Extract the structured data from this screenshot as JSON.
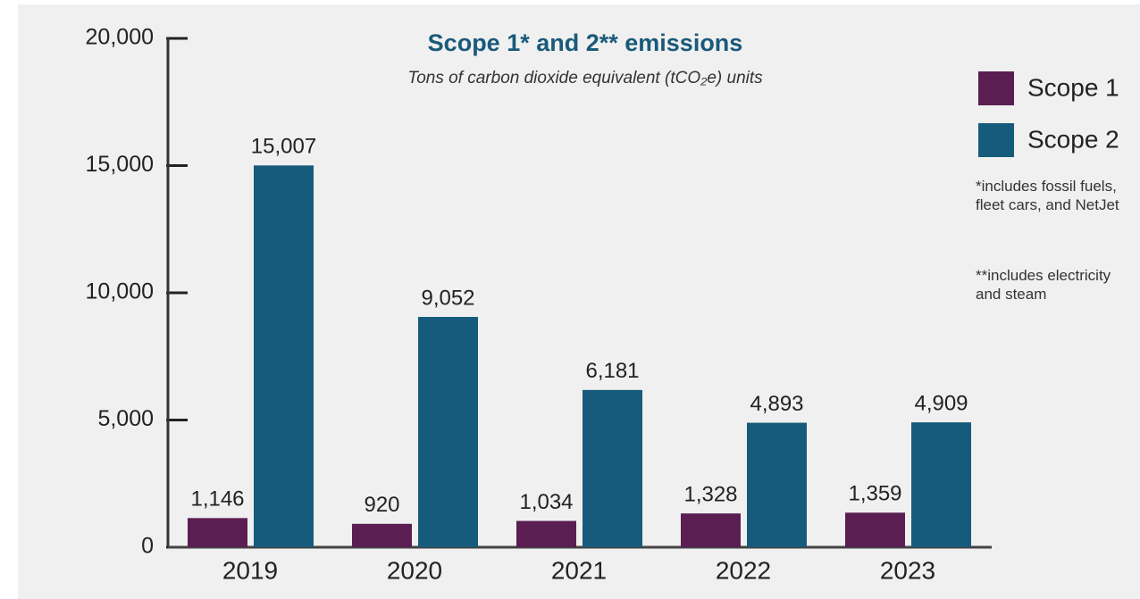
{
  "chart_data": {
    "type": "bar",
    "title": "Scope 1* and 2** emissions",
    "subtitle": "Tons of carbon dioxide equivalent (tCO₂e) units",
    "categories": [
      "2019",
      "2020",
      "2021",
      "2022",
      "2023"
    ],
    "series": [
      {
        "name": "Scope 1",
        "color": "#5a1e52",
        "values": [
          1146,
          920,
          1034,
          1328,
          1359
        ],
        "value_labels": [
          "1,146",
          "920",
          "1,034",
          "1,328",
          "1,359"
        ]
      },
      {
        "name": "Scope 2",
        "color": "#165b7b",
        "values": [
          15007,
          9052,
          6181,
          4893,
          4909
        ],
        "value_labels": [
          "15,007",
          "9,052",
          "6,181",
          "4,893",
          "4,909"
        ]
      }
    ],
    "ylim": [
      0,
      20000
    ],
    "yticks": [
      0,
      {
        "value": 5000,
        "label": "5,000"
      },
      {
        "value": 10000,
        "label": "10,000"
      },
      {
        "value": 15000,
        "label": "15,000"
      },
      {
        "value": 20000,
        "label": "20,000"
      }
    ],
    "legend": "right",
    "notes": [
      "*includes fossil fuels, fleet cars, and NetJet",
      "**includes electricity and steam"
    ]
  }
}
